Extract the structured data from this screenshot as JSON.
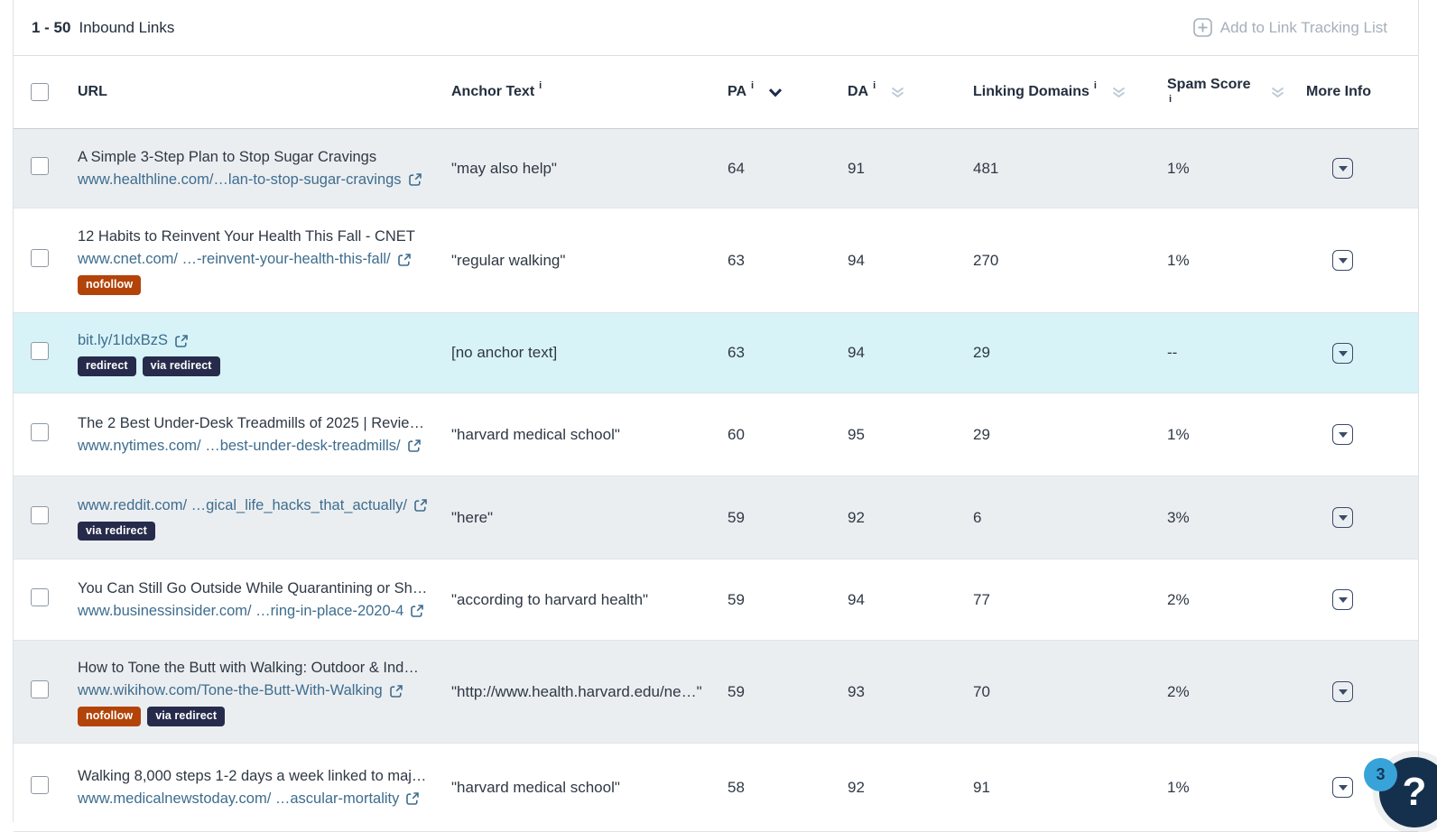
{
  "header": {
    "range": "1 - 50",
    "title": "Inbound Links",
    "add_to_list": "Add to Link Tracking List"
  },
  "table": {
    "columns": {
      "url": {
        "label": "URL"
      },
      "anchor": {
        "label": "Anchor Text"
      },
      "pa": {
        "label": "PA"
      },
      "da": {
        "label": "DA"
      },
      "linking_domains": {
        "label": "Linking Domains"
      },
      "spam_score": {
        "label": "Spam Score"
      },
      "more_info": {
        "label": "More Info"
      }
    },
    "sort": {
      "active_column": "pa",
      "direction": "desc"
    },
    "rows": [
      {
        "title": "A Simple 3-Step Plan to Stop Sugar Cravings",
        "url": "www.healthline.com/…lan-to-stop-sugar-cravings",
        "badges": [],
        "anchor": "\"may also help\"",
        "pa": "64",
        "da": "91",
        "linking_domains": "481",
        "spam_score": "1%",
        "row_style": "shaded"
      },
      {
        "title": "12 Habits to Reinvent Your Health This Fall - CNET",
        "url": "www.cnet.com/ …-reinvent-your-health-this-fall/",
        "badges": [
          {
            "label": "nofollow",
            "type": "nofollow"
          }
        ],
        "anchor": "\"regular walking\"",
        "pa": "63",
        "da": "94",
        "linking_domains": "270",
        "spam_score": "1%",
        "row_style": "white"
      },
      {
        "title": "",
        "url": "bit.ly/1IdxBzS",
        "badges": [
          {
            "label": "redirect",
            "type": "redirect"
          },
          {
            "label": "via redirect",
            "type": "redirect"
          }
        ],
        "anchor": "[no anchor text]",
        "pa": "63",
        "da": "94",
        "linking_domains": "29",
        "spam_score": "--",
        "row_style": "highlight"
      },
      {
        "title": "The 2 Best Under-Desk Treadmills of 2025 | Revie…",
        "url": "www.nytimes.com/ …best-under-desk-treadmills/",
        "badges": [],
        "anchor": "\"harvard medical school\"",
        "pa": "60",
        "da": "95",
        "linking_domains": "29",
        "spam_score": "1%",
        "row_style": "white"
      },
      {
        "title": "",
        "url": "www.reddit.com/ …gical_life_hacks_that_actually/",
        "badges": [
          {
            "label": "via redirect",
            "type": "redirect"
          }
        ],
        "anchor": "\"here\"",
        "pa": "59",
        "da": "92",
        "linking_domains": "6",
        "spam_score": "3%",
        "row_style": "shaded"
      },
      {
        "title": "You Can Still Go Outside While Quarantining or Sh…",
        "url": "www.businessinsider.com/ …ring-in-place-2020-4",
        "badges": [],
        "anchor": "\"according to harvard health\"",
        "pa": "59",
        "da": "94",
        "linking_domains": "77",
        "spam_score": "2%",
        "row_style": "white"
      },
      {
        "title": "How to Tone the Butt with Walking: Outdoor & Ind…",
        "url": "www.wikihow.com/Tone-the-Butt-With-Walking",
        "badges": [
          {
            "label": "nofollow",
            "type": "nofollow"
          },
          {
            "label": "via redirect",
            "type": "redirect"
          }
        ],
        "anchor": "\"http://www.health.harvard.edu/ne…\"",
        "pa": "59",
        "da": "93",
        "linking_domains": "70",
        "spam_score": "2%",
        "row_style": "shaded"
      },
      {
        "title": "Walking 8,000 steps 1-2 days a week linked to maj…",
        "url": "www.medicalnewstoday.com/ …ascular-mortality",
        "badges": [],
        "anchor": "\"harvard medical school\"",
        "pa": "58",
        "da": "92",
        "linking_domains": "91",
        "spam_score": "1%",
        "row_style": "white"
      }
    ]
  },
  "help_widget": {
    "badge_count": "3",
    "label": "?"
  },
  "colors": {
    "row_shaded": "#ebeef1",
    "row_highlight": "#d7f3f8",
    "badge_nofollow": "#b34409",
    "badge_redirect": "#272b4b",
    "link": "#3e6d8e",
    "help_navy": "#15304c",
    "help_blue": "#38a3d8"
  }
}
